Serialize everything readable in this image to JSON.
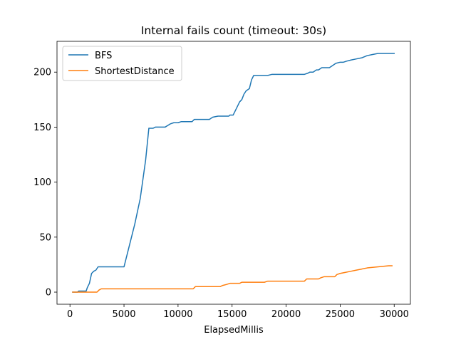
{
  "chart_data": {
    "type": "line",
    "title": "Internal fails count (timeout: 30s)",
    "xlabel": "ElapsedMillis",
    "ylabel": "",
    "xlim": [
      -1200,
      31500
    ],
    "ylim": [
      -11,
      228
    ],
    "xticks": [
      0,
      5000,
      10000,
      15000,
      20000,
      25000,
      30000
    ],
    "yticks": [
      0,
      50,
      100,
      150,
      200
    ],
    "grid": false,
    "legend": "top-left",
    "series": [
      {
        "name": "BFS",
        "color": "#1f77b4",
        "points": [
          [
            250,
            0
          ],
          [
            700,
            0
          ],
          [
            800,
            1
          ],
          [
            1500,
            1
          ],
          [
            1600,
            4
          ],
          [
            1800,
            8
          ],
          [
            2000,
            17
          ],
          [
            2200,
            19
          ],
          [
            2400,
            20
          ],
          [
            2600,
            23
          ],
          [
            3000,
            23
          ],
          [
            5000,
            23
          ],
          [
            6000,
            62
          ],
          [
            6500,
            85
          ],
          [
            7000,
            120
          ],
          [
            7300,
            149
          ],
          [
            7700,
            149
          ],
          [
            7900,
            150
          ],
          [
            8800,
            150
          ],
          [
            9300,
            153
          ],
          [
            9600,
            154
          ],
          [
            10000,
            154
          ],
          [
            10300,
            155
          ],
          [
            11300,
            155
          ],
          [
            11500,
            157
          ],
          [
            12900,
            157
          ],
          [
            13200,
            159
          ],
          [
            13700,
            160
          ],
          [
            14700,
            160
          ],
          [
            14800,
            161
          ],
          [
            15100,
            161
          ],
          [
            15300,
            165
          ],
          [
            15700,
            173
          ],
          [
            15900,
            175
          ],
          [
            16100,
            180
          ],
          [
            16300,
            183
          ],
          [
            16600,
            185
          ],
          [
            16800,
            193
          ],
          [
            17000,
            197
          ],
          [
            17500,
            197
          ],
          [
            18000,
            197
          ],
          [
            18300,
            197
          ],
          [
            18700,
            198
          ],
          [
            20000,
            198
          ],
          [
            21700,
            198
          ],
          [
            22000,
            199
          ],
          [
            22200,
            200
          ],
          [
            22500,
            200
          ],
          [
            22800,
            202
          ],
          [
            23000,
            202
          ],
          [
            23300,
            204
          ],
          [
            24000,
            204
          ],
          [
            24300,
            206
          ],
          [
            24600,
            208
          ],
          [
            25000,
            209
          ],
          [
            25300,
            209
          ],
          [
            25600,
            210
          ],
          [
            26000,
            211
          ],
          [
            26500,
            212
          ],
          [
            27000,
            213
          ],
          [
            27500,
            215
          ],
          [
            28000,
            216
          ],
          [
            28500,
            217
          ],
          [
            30000,
            217
          ]
        ]
      },
      {
        "name": "ShortestDistance",
        "color": "#ff7f0e",
        "points": [
          [
            250,
            0
          ],
          [
            1500,
            0
          ],
          [
            2500,
            0
          ],
          [
            2700,
            2
          ],
          [
            2900,
            3
          ],
          [
            3500,
            3
          ],
          [
            7000,
            3
          ],
          [
            11400,
            3
          ],
          [
            11600,
            5
          ],
          [
            13500,
            5
          ],
          [
            13900,
            5
          ],
          [
            14100,
            6
          ],
          [
            14500,
            7
          ],
          [
            14800,
            8
          ],
          [
            15700,
            8
          ],
          [
            15900,
            9
          ],
          [
            18000,
            9
          ],
          [
            18300,
            10
          ],
          [
            20000,
            10
          ],
          [
            21700,
            10
          ],
          [
            21900,
            12
          ],
          [
            23000,
            12
          ],
          [
            23200,
            13
          ],
          [
            23500,
            14
          ],
          [
            24500,
            14
          ],
          [
            24700,
            16
          ],
          [
            25000,
            17
          ],
          [
            25500,
            18
          ],
          [
            26000,
            19
          ],
          [
            26500,
            20
          ],
          [
            27000,
            21
          ],
          [
            27500,
            22
          ],
          [
            28500,
            23
          ],
          [
            29500,
            24
          ],
          [
            29800,
            24
          ]
        ]
      }
    ]
  }
}
